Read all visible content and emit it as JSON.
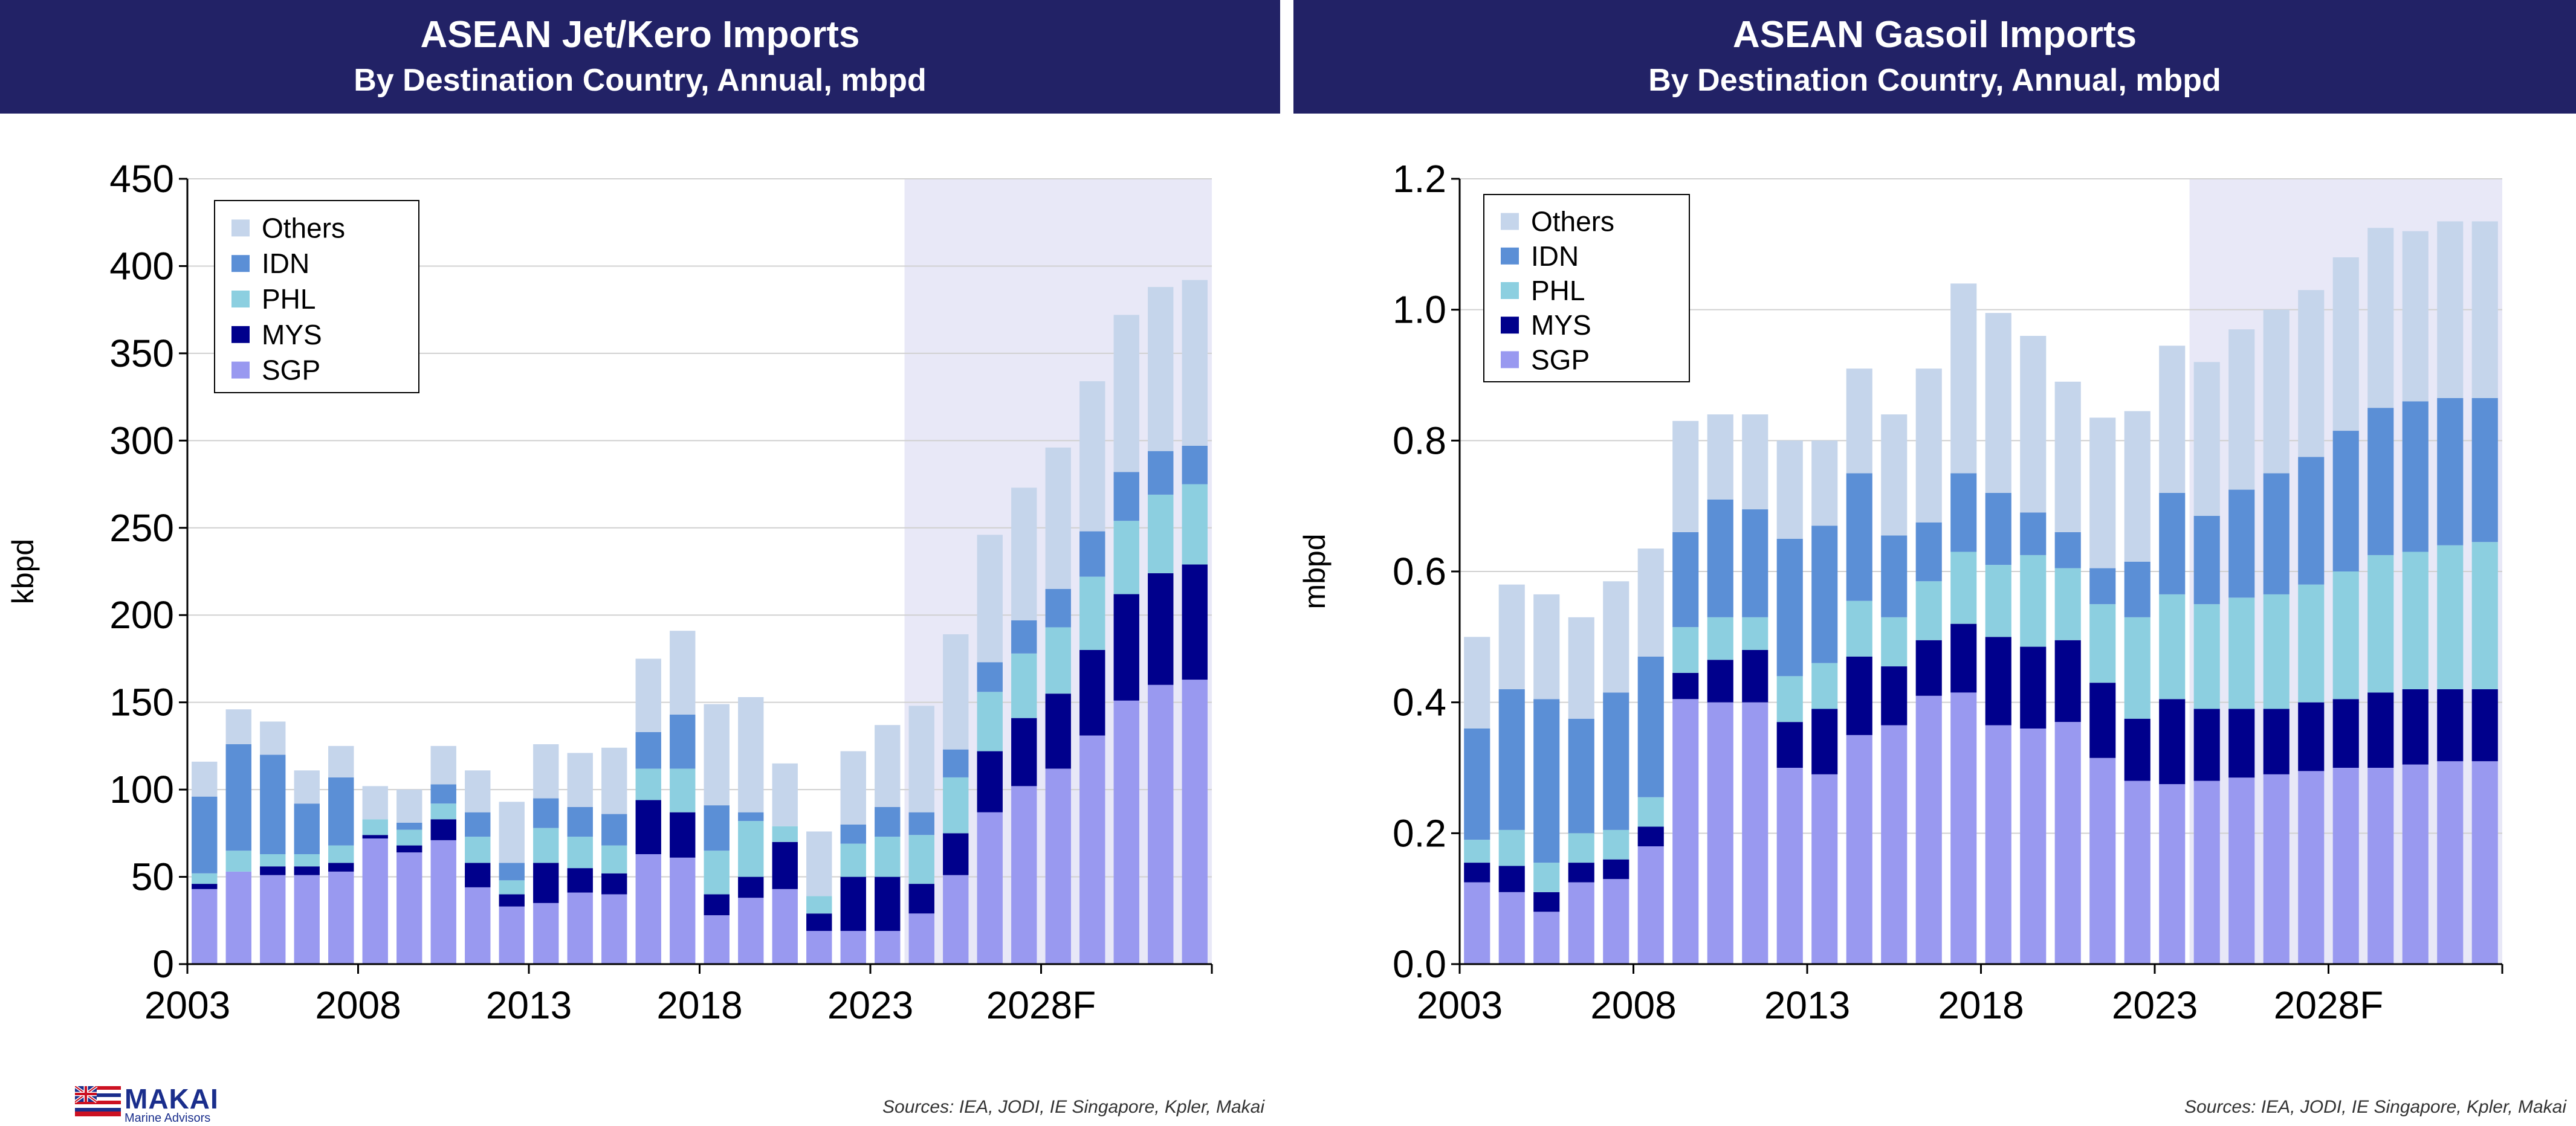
{
  "logo": {
    "brand": "MAKAI",
    "subtitle": "Marine Advisors"
  },
  "colors": {
    "header_bg": "#222266",
    "SGP": "#9999f0",
    "MYS": "#00008c",
    "PHL": "#8ccfe0",
    "IDN": "#5b8fd6",
    "Others": "#c5d5eb",
    "forecast_shade": "#e8e8f7"
  },
  "chart_data": [
    {
      "type": "bar",
      "stacked": true,
      "title": "ASEAN Jet/Kero Imports",
      "subtitle": "By Destination Country, Annual, mbpd",
      "ylabel": "kbpd",
      "ylim": [
        0,
        450
      ],
      "yticks": [
        "0",
        "50",
        "100",
        "150",
        "200",
        "250",
        "300",
        "350",
        "400",
        "450"
      ],
      "xtick_labels": [
        "2003",
        "2008",
        "2013",
        "2018",
        "2023",
        "2028F"
      ],
      "forecast_start": 2024,
      "grid": true,
      "legend_position": "top-left",
      "categories": [
        2003,
        2004,
        2005,
        2006,
        2007,
        2008,
        2009,
        2010,
        2011,
        2012,
        2013,
        2014,
        2015,
        2016,
        2017,
        2018,
        2019,
        2020,
        2021,
        2022,
        2023,
        2024,
        2025,
        2026,
        2027,
        2028,
        2029,
        2030,
        2031,
        2032
      ],
      "series": [
        {
          "name": "SGP",
          "values": [
            43,
            53,
            51,
            51,
            53,
            72,
            64,
            71,
            44,
            33,
            35,
            41,
            40,
            63,
            61,
            28,
            38,
            43,
            19,
            19,
            19,
            29,
            51,
            87,
            102,
            112,
            131,
            151,
            160,
            163
          ]
        },
        {
          "name": "MYS",
          "values": [
            3,
            0,
            5,
            5,
            5,
            2,
            4,
            12,
            14,
            7,
            23,
            14,
            12,
            31,
            26,
            12,
            12,
            27,
            10,
            31,
            31,
            17,
            24,
            35,
            39,
            43,
            49,
            61,
            64,
            66
          ]
        },
        {
          "name": "PHL",
          "values": [
            6,
            12,
            7,
            7,
            10,
            9,
            9,
            9,
            15,
            8,
            20,
            18,
            16,
            18,
            25,
            25,
            32,
            9,
            10,
            19,
            23,
            28,
            32,
            34,
            37,
            38,
            42,
            42,
            45,
            46
          ]
        },
        {
          "name": "IDN",
          "values": [
            44,
            61,
            57,
            29,
            39,
            0,
            4,
            11,
            14,
            10,
            17,
            17,
            18,
            21,
            31,
            26,
            5,
            0,
            0,
            11,
            17,
            13,
            16,
            17,
            19,
            22,
            26,
            28,
            25,
            22
          ]
        },
        {
          "name": "Others",
          "values": [
            20,
            20,
            19,
            19,
            18,
            19,
            19,
            22,
            24,
            35,
            31,
            31,
            38,
            42,
            48,
            58,
            66,
            36,
            37,
            42,
            47,
            61,
            66,
            73,
            76,
            81,
            86,
            90,
            94,
            95
          ]
        }
      ]
    },
    {
      "type": "bar",
      "stacked": true,
      "title": "ASEAN Gasoil Imports",
      "subtitle": "By Destination Country, Annual, mbpd",
      "ylabel": "mbpd",
      "ylim": [
        0,
        1.2
      ],
      "yticks": [
        "0.0",
        "0.2",
        "0.4",
        "0.6",
        "0.8",
        "1.0",
        "1.2"
      ],
      "xtick_labels": [
        "2003",
        "2008",
        "2013",
        "2018",
        "2023",
        "2028F"
      ],
      "forecast_start": 2024,
      "grid": true,
      "legend_position": "top-left",
      "categories": [
        2003,
        2004,
        2005,
        2006,
        2007,
        2008,
        2009,
        2010,
        2011,
        2012,
        2013,
        2014,
        2015,
        2016,
        2017,
        2018,
        2019,
        2020,
        2021,
        2022,
        2023,
        2024,
        2025,
        2026,
        2027,
        2028,
        2029,
        2030,
        2031,
        2032
      ],
      "series": [
        {
          "name": "SGP",
          "values": [
            0.125,
            0.11,
            0.08,
            0.125,
            0.13,
            0.18,
            0.405,
            0.4,
            0.4,
            0.3,
            0.29,
            0.35,
            0.365,
            0.41,
            0.415,
            0.365,
            0.36,
            0.37,
            0.315,
            0.28,
            0.275,
            0.28,
            0.285,
            0.29,
            0.295,
            0.3,
            0.3,
            0.305,
            0.31,
            0.31
          ]
        },
        {
          "name": "MYS",
          "values": [
            0.03,
            0.04,
            0.03,
            0.03,
            0.03,
            0.03,
            0.04,
            0.065,
            0.08,
            0.07,
            0.1,
            0.12,
            0.09,
            0.085,
            0.105,
            0.135,
            0.125,
            0.125,
            0.115,
            0.095,
            0.13,
            0.11,
            0.105,
            0.1,
            0.105,
            0.105,
            0.115,
            0.115,
            0.11,
            0.11
          ]
        },
        {
          "name": "PHL",
          "values": [
            0.035,
            0.055,
            0.045,
            0.045,
            0.045,
            0.045,
            0.07,
            0.065,
            0.05,
            0.07,
            0.07,
            0.085,
            0.075,
            0.09,
            0.11,
            0.11,
            0.14,
            0.11,
            0.12,
            0.155,
            0.16,
            0.16,
            0.17,
            0.175,
            0.18,
            0.195,
            0.21,
            0.21,
            0.22,
            0.225
          ]
        },
        {
          "name": "IDN",
          "values": [
            0.17,
            0.215,
            0.25,
            0.175,
            0.21,
            0.215,
            0.145,
            0.18,
            0.165,
            0.21,
            0.21,
            0.195,
            0.125,
            0.09,
            0.12,
            0.11,
            0.065,
            0.055,
            0.055,
            0.085,
            0.155,
            0.135,
            0.165,
            0.185,
            0.195,
            0.215,
            0.225,
            0.23,
            0.225,
            0.22
          ]
        },
        {
          "name": "Others",
          "values": [
            0.14,
            0.16,
            0.16,
            0.155,
            0.17,
            0.165,
            0.17,
            0.13,
            0.145,
            0.15,
            0.13,
            0.16,
            0.185,
            0.235,
            0.29,
            0.275,
            0.27,
            0.23,
            0.23,
            0.23,
            0.225,
            0.235,
            0.245,
            0.25,
            0.255,
            0.265,
            0.275,
            0.26,
            0.27,
            0.27
          ]
        }
      ]
    }
  ],
  "sources": [
    "Sources: IEA, JODI, IE Singapore, Kpler, Makai",
    "Sources: IEA, JODI, IE Singapore, Kpler, Makai"
  ]
}
